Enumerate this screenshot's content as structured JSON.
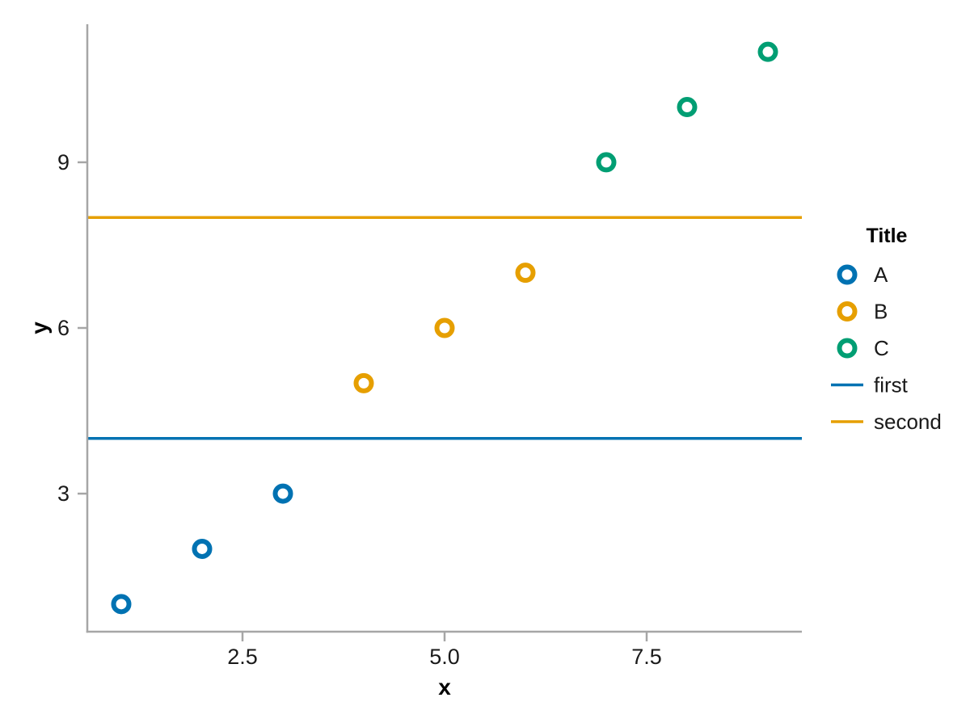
{
  "chart_data": {
    "type": "scatter",
    "title": "",
    "xlabel": "x",
    "ylabel": "y",
    "xlim": [
      0.58,
      9.42
    ],
    "ylim": [
      0.5,
      11.5
    ],
    "x_ticks": [
      2.5,
      5.0,
      7.5
    ],
    "x_tick_labels": [
      "2.5",
      "5.0",
      "7.5"
    ],
    "y_ticks": [
      3,
      6,
      9
    ],
    "y_tick_labels": [
      "3",
      "6",
      "9"
    ],
    "grid": false,
    "frame": "left-bottom-spines-only",
    "series": [
      {
        "name": "A",
        "marker": "open-circle",
        "color": "#0072B2",
        "points": [
          [
            1,
            1
          ],
          [
            2,
            2
          ],
          [
            3,
            3
          ]
        ]
      },
      {
        "name": "B",
        "marker": "open-circle",
        "color": "#E69F00",
        "points": [
          [
            4,
            5
          ],
          [
            5,
            6
          ],
          [
            6,
            7
          ]
        ]
      },
      {
        "name": "C",
        "marker": "open-circle",
        "color": "#009E73",
        "points": [
          [
            7,
            9
          ],
          [
            8,
            10
          ],
          [
            9,
            11
          ]
        ]
      }
    ],
    "hlines": [
      {
        "name": "first",
        "y": 4,
        "color": "#0072B2"
      },
      {
        "name": "second",
        "y": 8,
        "color": "#E69F00"
      }
    ],
    "legend": {
      "title": "Title",
      "position": "right-center",
      "entries": [
        {
          "label": "A",
          "swatch": "open-circle",
          "color": "#0072B2"
        },
        {
          "label": "B",
          "swatch": "open-circle",
          "color": "#E69F00"
        },
        {
          "label": "C",
          "swatch": "open-circle",
          "color": "#009E73"
        },
        {
          "label": "first",
          "swatch": "line",
          "color": "#0072B2"
        },
        {
          "label": "second",
          "swatch": "line",
          "color": "#E69F00"
        }
      ]
    },
    "colors": {
      "background": "#ffffff",
      "axis_spine": "#a6a6a6",
      "tick_text": "#1a1a1a",
      "label_text": "#000000"
    }
  }
}
